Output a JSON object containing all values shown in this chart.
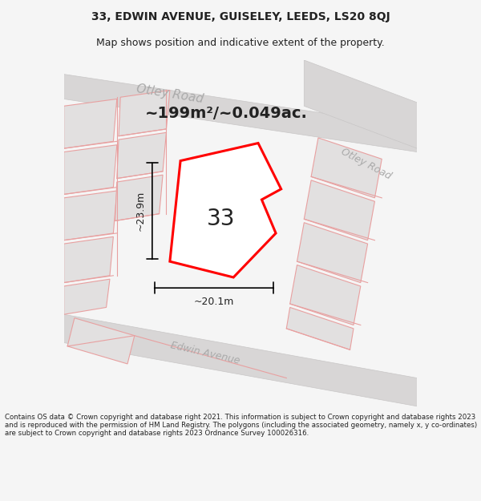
{
  "title_line1": "33, EDWIN AVENUE, GUISELEY, LEEDS, LS20 8QJ",
  "title_line2": "Map shows position and indicative extent of the property.",
  "area_text": "~199m²/~0.049ac.",
  "label_33": "33",
  "dim_height": "~23.9m",
  "dim_width": "~20.1m",
  "road_label_top": "Otley Road",
  "road_label_right": "Otley Road",
  "road_label_bottom": "Edwin Avenue",
  "footer_text": "Contains OS data © Crown copyright and database right 2021. This information is subject to Crown copyright and database rights 2023 and is reproduced with the permission of HM Land Registry. The polygons (including the associated geometry, namely x, y co-ordinates) are subject to Crown copyright and database rights 2023 Ordnance Survey 100026316.",
  "bg_color": "#f5f5f5",
  "map_bg": "#eeecec",
  "road_color": "#d8d6d6",
  "road_border": "#c8c6c6",
  "red_color": "#ff0000",
  "pink_color": "#e8a0a0",
  "dark_text": "#222222",
  "gray_text": "#aaaaaa",
  "white_color": "#ffffff",
  "block_color": "#e2e0e0",
  "block_edge": "#d0cece"
}
